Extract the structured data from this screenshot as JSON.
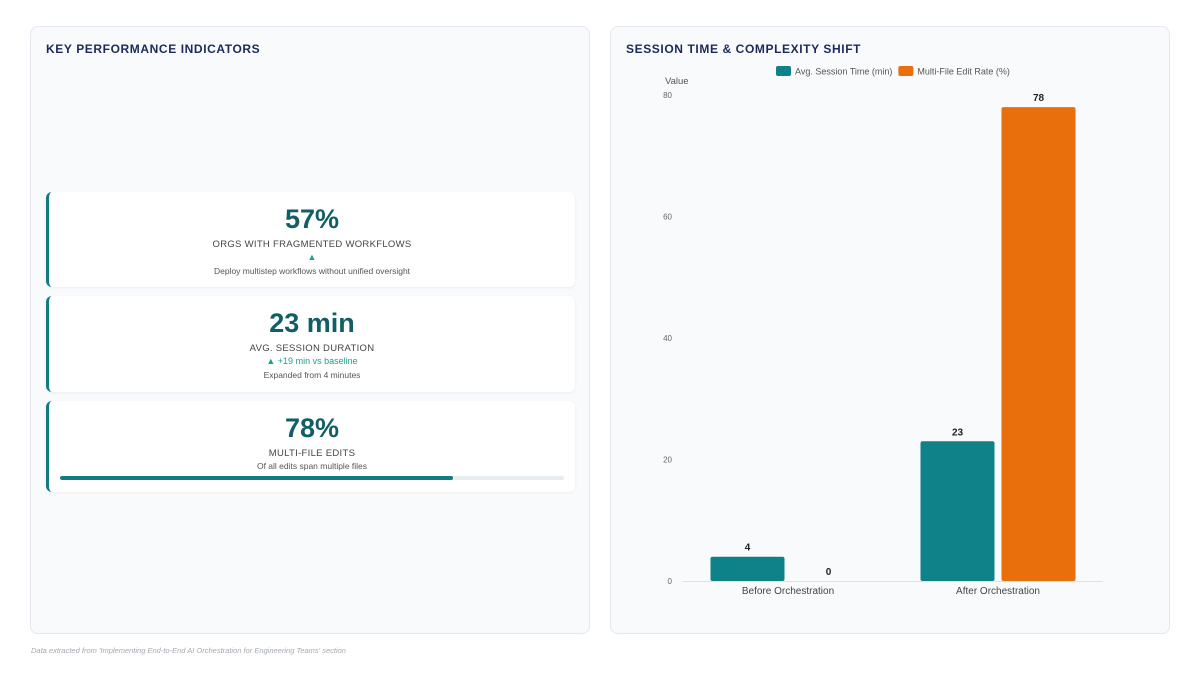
{
  "kpi_panel": {
    "title": "KEY PERFORMANCE INDICATORS",
    "cards": [
      {
        "value": "57%",
        "label": "ORGS WITH FRAGMENTED WORKFLOWS",
        "trend": "▲",
        "description": "Deploy multistep workflows without unified oversight"
      },
      {
        "value": "23 min",
        "label": "AVG. SESSION DURATION",
        "trend": "▲ +19 min vs baseline",
        "description": "Expanded from 4 minutes"
      },
      {
        "value": "78%",
        "label": "MULTI-FILE EDITS",
        "description": "Of all edits span multiple files",
        "progress_percent": 78
      }
    ]
  },
  "chart_panel": {
    "title": "SESSION TIME & COMPLEXITY SHIFT"
  },
  "chart_data": {
    "type": "bar",
    "categories": [
      "Before Orchestration",
      "After Orchestration"
    ],
    "series": [
      {
        "name": "Avg. Session Time (min)",
        "values": [
          4,
          23
        ],
        "color": "#0f8189"
      },
      {
        "name": "Multi-File Edit Rate (%)",
        "values": [
          0,
          78
        ],
        "color": "#e86f0b"
      }
    ],
    "ylabel": "Value",
    "ylim": [
      0,
      80
    ],
    "yticks": [
      0,
      20,
      40,
      60,
      80
    ],
    "legend": "top-center",
    "grid": false
  },
  "footnote": "Data extracted from 'Implementing End-to-End AI Orchestration for Engineering Teams' section",
  "colors": {
    "primary_teal": "#115e66",
    "accent_teal": "#127a80",
    "trend_green": "#16a38a",
    "title_navy": "#1b2a5c"
  }
}
